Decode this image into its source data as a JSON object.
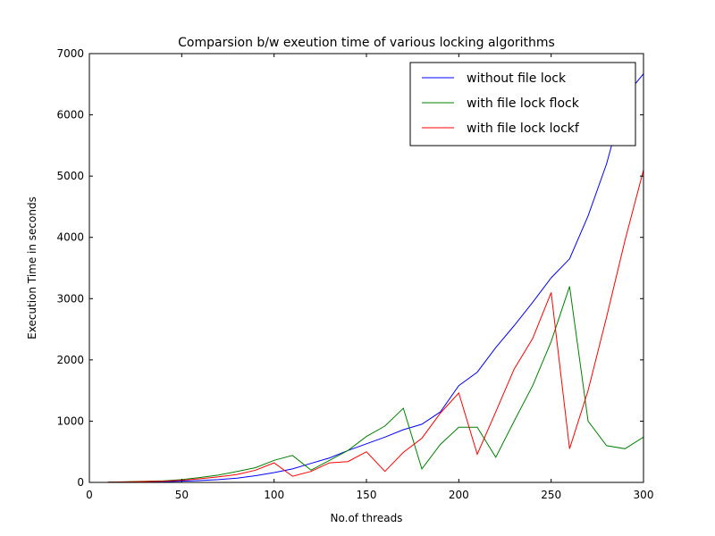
{
  "chart_data": {
    "type": "line",
    "title": "Comparsion b/w exeution time of various locking algorithms",
    "xlabel": "No.of threads",
    "ylabel": "Execution Time in seconds",
    "xlim": [
      0,
      300
    ],
    "ylim": [
      0,
      7000
    ],
    "xticks": [
      0,
      50,
      100,
      150,
      200,
      250,
      300
    ],
    "yticks": [
      0,
      1000,
      2000,
      3000,
      4000,
      5000,
      6000,
      7000
    ],
    "grid": false,
    "legend_position": "top-right",
    "x": [
      10,
      20,
      30,
      40,
      50,
      60,
      70,
      80,
      90,
      100,
      110,
      120,
      130,
      140,
      150,
      160,
      170,
      180,
      190,
      200,
      210,
      220,
      230,
      240,
      250,
      260,
      270,
      280,
      290,
      300
    ],
    "series": [
      {
        "name": "without file lock",
        "color": "#0000ff",
        "values": [
          2,
          5,
          8,
          12,
          20,
          30,
          45,
          70,
          110,
          160,
          220,
          310,
          400,
          520,
          630,
          740,
          860,
          950,
          1150,
          1580,
          1800,
          2200,
          2560,
          2940,
          3340,
          3650,
          4350,
          5200,
          6300,
          6670
        ]
      },
      {
        "name": "with file lock flock",
        "color": "#008000",
        "values": [
          5,
          10,
          18,
          25,
          45,
          80,
          120,
          180,
          240,
          360,
          440,
          200,
          360,
          520,
          750,
          920,
          1210,
          220,
          620,
          900,
          900,
          410,
          1000,
          1580,
          2300,
          3200,
          1000,
          600,
          550,
          740
        ]
      },
      {
        "name": "with file lock lockf",
        "color": "#ff0000",
        "values": [
          3,
          8,
          15,
          20,
          35,
          60,
          90,
          130,
          200,
          320,
          100,
          180,
          320,
          340,
          500,
          180,
          490,
          720,
          1130,
          1460,
          460,
          1150,
          1850,
          2350,
          3100,
          550,
          1500,
          2700,
          3950,
          5100
        ]
      }
    ]
  }
}
